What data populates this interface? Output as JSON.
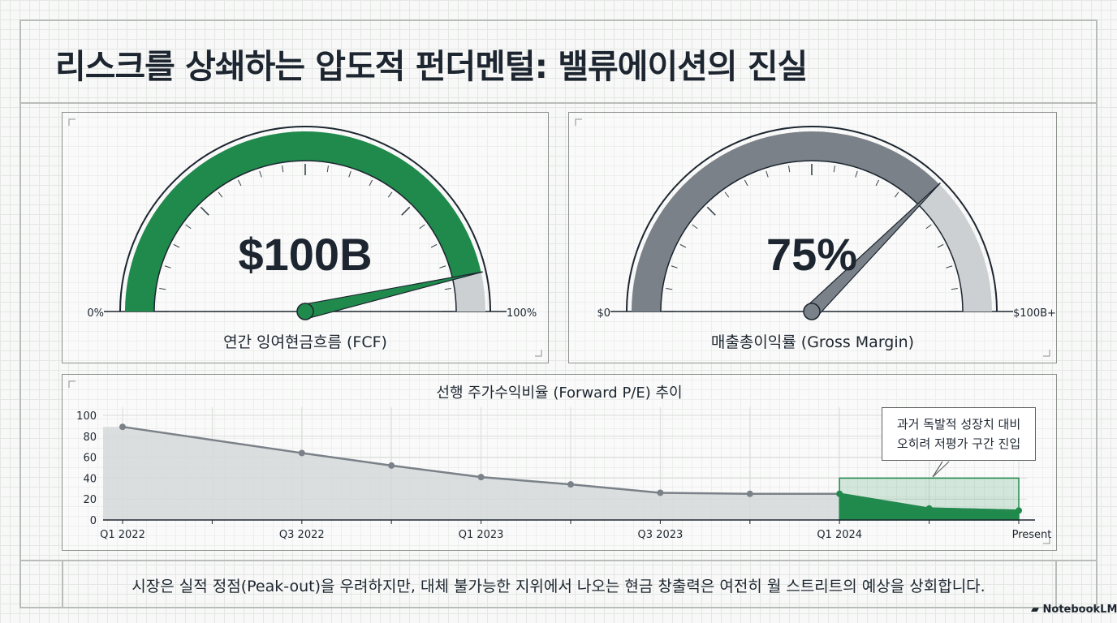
{
  "title": "리스크를 상쇄하는 압도적 펀더멘털: 밸류에이션의 진실",
  "colors": {
    "accent": "#1f8a4c",
    "gray": "#7a8188",
    "light_gray": "#cdd0d2",
    "shade": "#d5d8d9"
  },
  "gauges": [
    {
      "value_label": "$100B",
      "caption": "연간 잉여현금흐름 (FCF)",
      "min_label": "0%",
      "max_label": "100%",
      "fill_fraction": 0.93,
      "fill_color": "#1f8a4c"
    },
    {
      "value_label": "75%",
      "caption": "매출총이익률 (Gross Margin)",
      "min_label": "$0",
      "max_label": "$100B+",
      "fill_fraction": 0.75,
      "fill_color": "#7a8188"
    }
  ],
  "chart_data": {
    "type": "area",
    "title": "선행 주가수익비율 (Forward P/E) 추이",
    "x": [
      "Q1 2022",
      "",
      "Q3 2022",
      "",
      "Q1 2023",
      "",
      "Q3 2023",
      "",
      "Q1 2024",
      "",
      "Present"
    ],
    "values": [
      89,
      null,
      64,
      52,
      41,
      34,
      26,
      25,
      25,
      11,
      9
    ],
    "ylim": [
      0,
      100
    ],
    "yticks": [
      0,
      20,
      40,
      60,
      80,
      100
    ],
    "grid": true,
    "highlight_range": {
      "from_index": 8,
      "to_index": 10,
      "box_top": 40
    },
    "annotation": {
      "line1": "과거 독발적 성장치 대비",
      "line2": "오히려 저평가 구간 진입"
    }
  },
  "footer": "시장은 실적 정점(Peak-out)을 우려하지만, 대체 불가능한 지위에서 나오는 현금 창출력은 여전히 월 스트리트의 예상을 상회합니다.",
  "brand": "NotebookLM"
}
